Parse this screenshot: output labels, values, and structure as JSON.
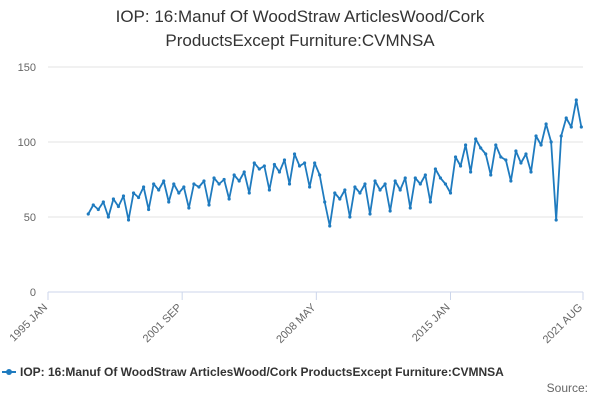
{
  "chart_data": {
    "type": "line",
    "title_lines": [
      "IOP: 16:Manuf Of WoodStraw ArticlesWood/Cork",
      "ProductsExcept Furniture:CVMNSA"
    ],
    "source": "Source:",
    "x": [
      "1997-01",
      "1997-04",
      "1997-07",
      "1997-10",
      "1998-01",
      "1998-04",
      "1998-07",
      "1998-10",
      "1999-01",
      "1999-04",
      "1999-07",
      "1999-10",
      "2000-01",
      "2000-04",
      "2000-07",
      "2000-10",
      "2001-01",
      "2001-04",
      "2001-07",
      "2001-10",
      "2002-01",
      "2002-04",
      "2002-07",
      "2002-10",
      "2003-01",
      "2003-04",
      "2003-07",
      "2003-10",
      "2004-01",
      "2004-04",
      "2004-07",
      "2004-10",
      "2005-01",
      "2005-04",
      "2005-07",
      "2005-10",
      "2006-01",
      "2006-04",
      "2006-07",
      "2006-10",
      "2007-01",
      "2007-04",
      "2007-07",
      "2007-10",
      "2008-01",
      "2008-04",
      "2008-07",
      "2008-10",
      "2009-01",
      "2009-04",
      "2009-07",
      "2009-10",
      "2010-01",
      "2010-04",
      "2010-07",
      "2010-10",
      "2011-01",
      "2011-04",
      "2011-07",
      "2011-10",
      "2012-01",
      "2012-04",
      "2012-07",
      "2012-10",
      "2013-01",
      "2013-04",
      "2013-07",
      "2013-10",
      "2014-01",
      "2014-04",
      "2014-07",
      "2014-10",
      "2015-01",
      "2015-04",
      "2015-07",
      "2015-10",
      "2016-01",
      "2016-04",
      "2016-07",
      "2016-10",
      "2017-01",
      "2017-04",
      "2017-07",
      "2017-10",
      "2018-01",
      "2018-04",
      "2018-07",
      "2018-10",
      "2019-01",
      "2019-04",
      "2019-07",
      "2019-10",
      "2020-01",
      "2020-04",
      "2020-07",
      "2020-10",
      "2021-01",
      "2021-04",
      "2021-07"
    ],
    "series": [
      {
        "name": "IOP: 16:Manuf Of WoodStraw ArticlesWood/Cork ProductsExcept Furniture:CVMNSA",
        "color": "#1f7bbf",
        "values": [
          52,
          58,
          55,
          60,
          50,
          62,
          57,
          64,
          48,
          66,
          63,
          70,
          55,
          72,
          68,
          74,
          60,
          72,
          66,
          70,
          56,
          72,
          70,
          74,
          58,
          76,
          72,
          75,
          62,
          78,
          74,
          80,
          66,
          86,
          82,
          84,
          68,
          85,
          80,
          88,
          72,
          92,
          84,
          86,
          70,
          86,
          78,
          60,
          44,
          66,
          62,
          68,
          50,
          70,
          66,
          72,
          52,
          74,
          68,
          72,
          54,
          74,
          68,
          76,
          56,
          76,
          72,
          78,
          60,
          82,
          76,
          72,
          66,
          90,
          84,
          98,
          80,
          102,
          96,
          92,
          78,
          98,
          90,
          88,
          74,
          94,
          86,
          92,
          80,
          104,
          98,
          112,
          100,
          48,
          104,
          116,
          110,
          128,
          110
        ]
      }
    ],
    "xlim": [
      "1995-01",
      "2021-08"
    ],
    "xticks": [
      {
        "value": "1995-01",
        "label": "1995 JAN"
      },
      {
        "value": "2001-09",
        "label": "2001 SEP"
      },
      {
        "value": "2008-05",
        "label": "2008 MAY"
      },
      {
        "value": "2015-01",
        "label": "2015 JAN"
      },
      {
        "value": "2021-08",
        "label": "2021 AUG"
      }
    ],
    "ylim": [
      0,
      150
    ],
    "yticks": [
      0,
      50,
      100,
      150
    ],
    "grid": true,
    "legend": "bottom"
  }
}
